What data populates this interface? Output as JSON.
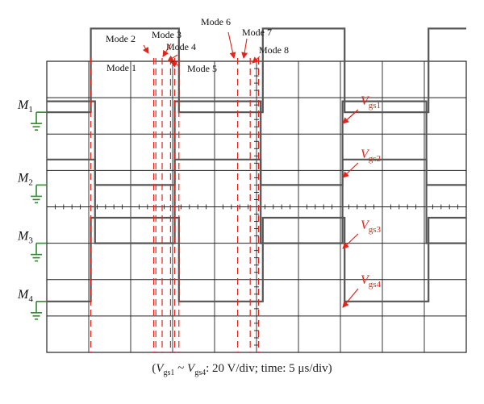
{
  "chart_data": {
    "type": "line",
    "grid": true,
    "divisions": {
      "x": 10,
      "y": 8
    },
    "x_range_div": [
      0,
      10
    ],
    "y_range_div": [
      0,
      8
    ],
    "channels": [
      {
        "marker": "M",
        "marker_sub": "1",
        "series_label": "V",
        "series_sub": "gs1",
        "ground_div": 1.4,
        "high_div": 2.3,
        "points": [
          [
            0,
            0
          ],
          [
            1.05,
            0
          ],
          [
            1.05,
            1
          ],
          [
            3.15,
            1
          ],
          [
            3.15,
            0
          ],
          [
            5.15,
            0
          ],
          [
            5.15,
            1
          ],
          [
            7.1,
            1
          ],
          [
            7.1,
            0
          ],
          [
            9.1,
            0
          ],
          [
            9.1,
            1
          ],
          [
            10,
            1
          ]
        ]
      },
      {
        "marker": "M",
        "marker_sub": "2",
        "series_label": "V",
        "series_sub": "gs2",
        "ground_div": 3.4,
        "high_div": 2.3,
        "points": [
          [
            0,
            1
          ],
          [
            1.15,
            1
          ],
          [
            1.15,
            0
          ],
          [
            3.05,
            0
          ],
          [
            3.05,
            1
          ],
          [
            5.1,
            1
          ],
          [
            5.1,
            0
          ],
          [
            7.05,
            0
          ],
          [
            7.05,
            1
          ],
          [
            9.05,
            1
          ],
          [
            9.05,
            0
          ],
          [
            10,
            0
          ]
        ]
      },
      {
        "marker": "M",
        "marker_sub": "3",
        "series_label": "V",
        "series_sub": "gs3",
        "ground_div": 5.0,
        "high_div": 2.3,
        "points": [
          [
            0,
            1
          ],
          [
            1.15,
            1
          ],
          [
            1.15,
            0
          ],
          [
            3.05,
            0
          ],
          [
            3.05,
            1
          ],
          [
            5.1,
            1
          ],
          [
            5.1,
            0
          ],
          [
            7.05,
            0
          ],
          [
            7.05,
            1
          ],
          [
            9.05,
            1
          ],
          [
            9.05,
            0
          ],
          [
            10,
            0
          ]
        ]
      },
      {
        "marker": "M",
        "marker_sub": "4",
        "series_label": "V",
        "series_sub": "gs4",
        "ground_div": 6.6,
        "high_div": 2.3,
        "points": [
          [
            0,
            0
          ],
          [
            1.05,
            0
          ],
          [
            1.05,
            1
          ],
          [
            3.15,
            1
          ],
          [
            3.15,
            0
          ],
          [
            5.15,
            0
          ],
          [
            5.15,
            1
          ],
          [
            7.1,
            1
          ],
          [
            7.1,
            0
          ],
          [
            9.1,
            0
          ],
          [
            9.1,
            1
          ],
          [
            10,
            1
          ]
        ]
      }
    ],
    "modes": [
      {
        "label": "Mode 1",
        "x_div": 1.05
      },
      {
        "label": "Mode 2",
        "x_div": 2.55
      },
      {
        "label": "Mode 3",
        "x_div": 2.75
      },
      {
        "label": "Mode 4",
        "x_div": 3.05
      },
      {
        "label": "Mode 5",
        "x_div": 3.15
      },
      {
        "label": "Mode 6",
        "x_div": 4.55
      },
      {
        "label": "Mode 7",
        "x_div": 4.85
      },
      {
        "label": "Mode 8",
        "x_div": 5.05
      }
    ],
    "mode_extra_lines_div": [
      2.6,
      2.95
    ],
    "caption": {
      "open": "(",
      "v1": "V",
      "v1_sub": "gs1",
      "tilde": " ~ ",
      "v4": "V",
      "v4_sub": "gs4",
      "rest": ": 20 V/div; time: 5 μs/div)"
    },
    "colors": {
      "trace": "#555555",
      "mode": "#e3241b",
      "ground": "#2e8b2e",
      "grid": "#222222"
    }
  }
}
